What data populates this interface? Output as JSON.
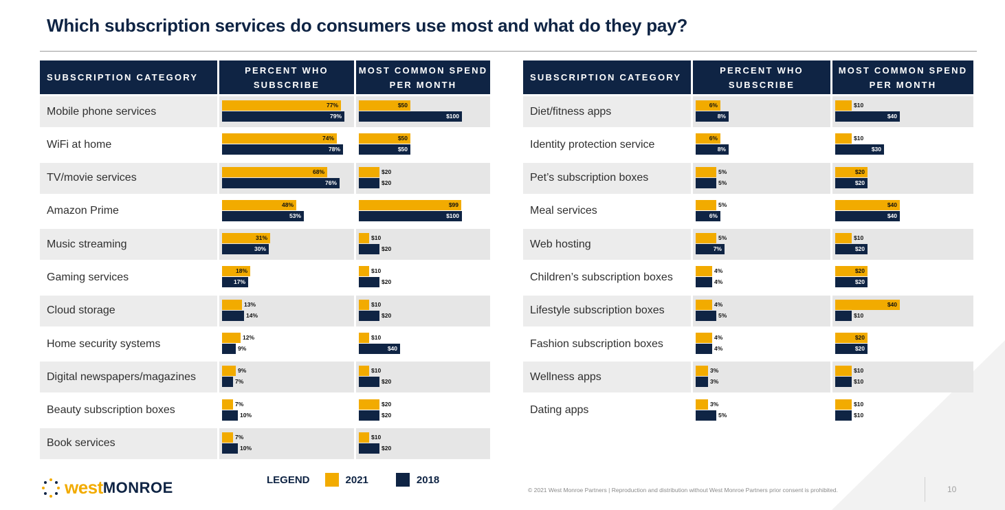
{
  "title": "Which subscription services do consumers use most and what do they pay?",
  "colors": {
    "y2021": "#f2ab00",
    "y2018": "#0f2444"
  },
  "headers": {
    "left": {
      "category": "SUBSCRIPTION CATEGORY",
      "percent": "PERCENT WHO SUBSCRIBE",
      "spend": "MOST COMMON SPEND PER MONTH"
    },
    "right": {
      "category": "SUBSCRIPTION CATEGORY",
      "percent": "PERCENT WHO SUBSCRIBE",
      "spend": "MOST COMMON SPEND PER MONTH"
    }
  },
  "chart_data": [
    {
      "type": "bar",
      "series": [
        {
          "name": "2021"
        },
        {
          "name": "2018"
        }
      ],
      "rows": [
        {
          "category": "Mobile phone services",
          "percent": [
            77,
            79
          ],
          "spend": [
            50,
            100
          ]
        },
        {
          "category": "WiFi at home",
          "percent": [
            74,
            78
          ],
          "spend": [
            50,
            50
          ]
        },
        {
          "category": "TV/movie services",
          "percent": [
            68,
            76
          ],
          "spend": [
            20,
            20
          ]
        },
        {
          "category": "Amazon Prime",
          "percent": [
            48,
            53
          ],
          "spend": [
            99,
            100
          ]
        },
        {
          "category": "Music streaming",
          "percent": [
            31,
            30
          ],
          "spend": [
            10,
            20
          ]
        },
        {
          "category": "Gaming services",
          "percent": [
            18,
            17
          ],
          "spend": [
            10,
            20
          ]
        },
        {
          "category": "Cloud storage",
          "percent": [
            13,
            14
          ],
          "spend": [
            10,
            20
          ]
        },
        {
          "category": "Home security systems",
          "percent": [
            12,
            9
          ],
          "spend": [
            10,
            40
          ]
        },
        {
          "category": "Digital newspapers/magazines",
          "percent": [
            9,
            7
          ],
          "spend": [
            10,
            20
          ]
        },
        {
          "category": "Beauty subscription boxes",
          "percent": [
            7,
            10
          ],
          "spend": [
            20,
            20
          ]
        },
        {
          "category": "Book services",
          "percent": [
            7,
            10
          ],
          "spend": [
            10,
            20
          ]
        }
      ]
    },
    {
      "type": "bar",
      "series": [
        {
          "name": "2021"
        },
        {
          "name": "2018"
        }
      ],
      "rows": [
        {
          "category": "Diet/fitness apps",
          "percent": [
            6,
            8
          ],
          "spend": [
            10,
            40
          ]
        },
        {
          "category": "Identity protection service",
          "percent": [
            6,
            8
          ],
          "spend": [
            10,
            30
          ]
        },
        {
          "category": "Pet’s subscription boxes",
          "percent": [
            5,
            5
          ],
          "spend": [
            20,
            20
          ]
        },
        {
          "category": "Meal services",
          "percent": [
            5,
            6
          ],
          "spend": [
            40,
            40
          ]
        },
        {
          "category": "Web hosting",
          "percent": [
            5,
            7
          ],
          "spend": [
            10,
            20
          ]
        },
        {
          "category": "Children’s subscription boxes",
          "percent": [
            4,
            4
          ],
          "spend": [
            20,
            20
          ]
        },
        {
          "category": "Lifestyle subscription boxes",
          "percent": [
            4,
            5
          ],
          "spend": [
            40,
            10
          ]
        },
        {
          "category": "Fashion subscription boxes",
          "percent": [
            4,
            4
          ],
          "spend": [
            20,
            20
          ]
        },
        {
          "category": "Wellness apps",
          "percent": [
            3,
            3
          ],
          "spend": [
            10,
            10
          ]
        },
        {
          "category": "Dating apps",
          "percent": [
            3,
            5
          ],
          "spend": [
            10,
            10
          ]
        }
      ]
    }
  ],
  "legend": {
    "label": "LEGEND",
    "items": [
      "2021",
      "2018"
    ]
  },
  "logo": {
    "west": "west",
    "monroe": "MONROE"
  },
  "footer": "© 2021 West Monroe Partners | Reproduction and distribution without West Monroe Partners prior consent is prohibited.",
  "page_number": "10"
}
